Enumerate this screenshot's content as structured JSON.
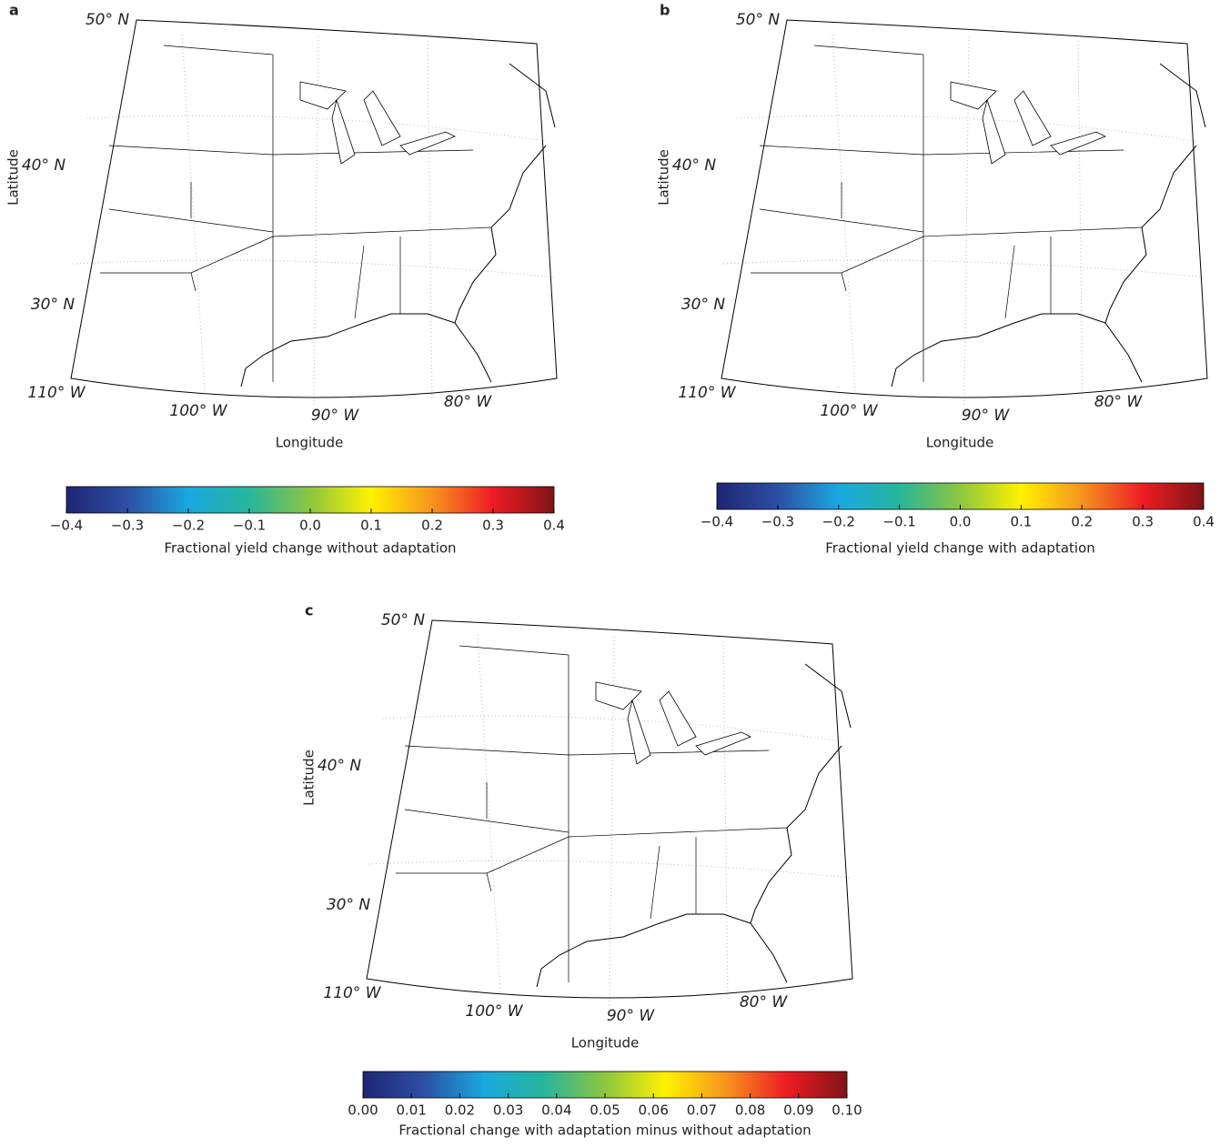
{
  "panels": [
    {
      "label": "a",
      "lat_labels": [
        "50° N",
        "40° N",
        "30° N"
      ],
      "lon_labels": [
        "110° W",
        "100° W",
        "90° W",
        "80° W"
      ],
      "ylabel": "Latitude",
      "xlabel": "Longitude",
      "colorbar": {
        "clim": [
          -0.4,
          0.4
        ],
        "colors": [
          "#1e2673",
          "#2d4fa3",
          "#1aa8e0",
          "#27b59b",
          "#8dc63f",
          "#fff200",
          "#f7941d",
          "#ed1c24",
          "#7f1416"
        ],
        "ticks": [
          {
            "value": -0.4,
            "label": "−0.4"
          },
          {
            "value": -0.3,
            "label": "−0.3"
          },
          {
            "value": -0.2,
            "label": "−0.2"
          },
          {
            "value": -0.1,
            "label": "−0.1"
          },
          {
            "value": 0,
            "label": "0.0"
          },
          0.1,
          0.2,
          0.3,
          0.4
        ],
        "label": "Fractional yield change without adaptation"
      }
    },
    {
      "label": "b",
      "lat_labels": [
        "50° N",
        "40° N",
        "30° N"
      ],
      "lon_labels": [
        "110° W",
        "100° W",
        "90° W",
        "80° W"
      ],
      "ylabel": "Latitude",
      "xlabel": "Longitude",
      "colorbar": {
        "clim": [
          -0.4,
          0.4
        ],
        "colors": [
          "#1e2673",
          "#2d4fa3",
          "#1aa8e0",
          "#27b59b",
          "#8dc63f",
          "#fff200",
          "#f7941d",
          "#ed1c24",
          "#7f1416"
        ],
        "ticks": [
          {
            "value": -0.4,
            "label": "−0.4"
          },
          {
            "value": -0.3,
            "label": "−0.3"
          },
          {
            "value": -0.2,
            "label": "−0.2"
          },
          {
            "value": -0.1,
            "label": "−0.1"
          },
          {
            "value": 0,
            "label": "0.0"
          },
          0.1,
          0.2,
          0.3,
          0.4
        ],
        "label": "Fractional yield change with adaptation"
      }
    },
    {
      "label": "c",
      "lat_labels": [
        "50° N",
        "40° N",
        "30° N"
      ],
      "lon_labels": [
        "110° W",
        "100° W",
        "90° W",
        "80° W"
      ],
      "ylabel": "Latitude",
      "xlabel": "Longitude",
      "colorbar": {
        "clim": [
          0,
          0.1
        ],
        "colors": [
          "#1e2673",
          "#2d4fa3",
          "#1aa8e0",
          "#27b59b",
          "#8dc63f",
          "#fff200",
          "#f7941d",
          "#ed1c24",
          "#7f1416"
        ],
        "ticks": [
          {
            "value": 0,
            "label": "0.00"
          },
          0.01,
          0.02,
          0.03,
          0.04,
          0.05,
          0.06,
          0.07,
          0.08,
          0.09,
          {
            "value": 0.1,
            "label": "0.10"
          }
        ],
        "label": "Fractional change with adaptation minus without adaptation"
      }
    }
  ]
}
